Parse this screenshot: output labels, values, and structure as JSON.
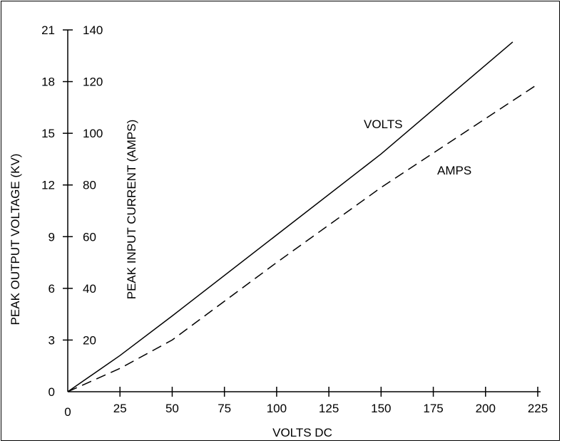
{
  "chart_data": {
    "type": "line",
    "xlabel": "VOLTS DC",
    "ylabel_left": "PEAK OUTPUT VOLTAGE (KV)",
    "ylabel_right": "PEAK INPUT CURRENT (AMPS)",
    "x_ticks": [
      0,
      25,
      50,
      75,
      100,
      125,
      150,
      175,
      200,
      225
    ],
    "xlim": [
      0,
      226
    ],
    "y_kv_ticks": [
      0,
      3,
      6,
      9,
      12,
      15,
      18,
      21
    ],
    "y_amps_ticks": [
      20,
      40,
      60,
      80,
      100,
      120,
      140
    ],
    "ylim_kv": [
      0,
      21
    ],
    "ylim_amps": [
      0,
      140
    ],
    "grid": false,
    "series": [
      {
        "name": "VOLTS",
        "axis": "kv",
        "style": "solid",
        "color": "#000000",
        "x": [
          0,
          25,
          50,
          100,
          150,
          213
        ],
        "y": [
          0,
          2.1,
          4.4,
          9.1,
          13.8,
          20.3
        ]
      },
      {
        "name": "AMPS",
        "axis": "amps",
        "style": "dashed",
        "color": "#000000",
        "x": [
          0,
          25,
          50,
          100,
          150,
          225
        ],
        "y": [
          0,
          9,
          20,
          50,
          79,
          119
        ]
      }
    ]
  }
}
